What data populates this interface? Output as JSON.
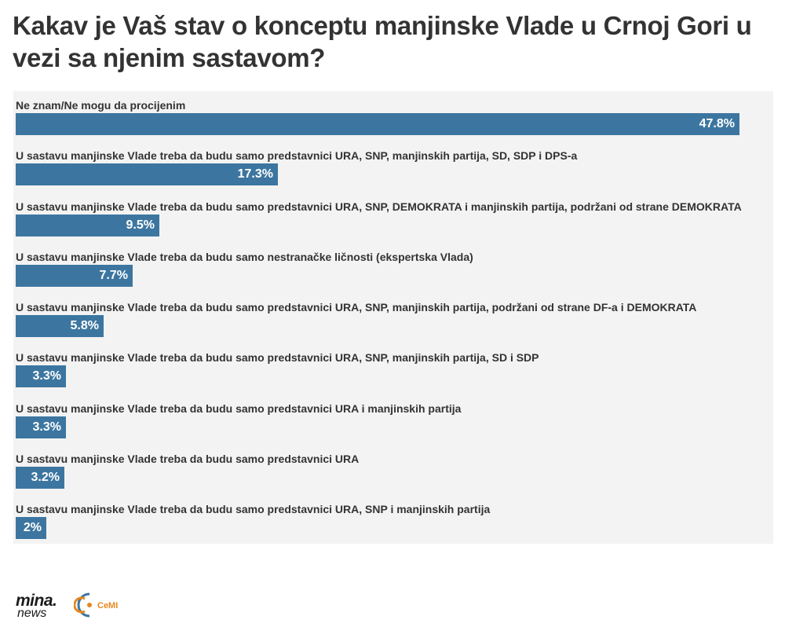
{
  "title": "Kakav je Vaš stav o konceptu manjinske Vlade u Crnoj Gori u vezi sa njenim sastavom?",
  "colors": {
    "bar": "#3c76a0",
    "panel": "#f3f3f3",
    "text": "#333333"
  },
  "chart_data": {
    "type": "bar",
    "orientation": "horizontal",
    "title": "Kakav je Vaš stav o konceptu manjinske Vlade u Crnoj Gori u vezi sa njenim sastavom?",
    "categories": [
      "Ne znam/Ne mogu da procijenim",
      "U sastavu manjinske Vlade treba da budu samo predstavnici URA, SNP, manjinskih partija, SD, SDP i DPS-a",
      "U sastavu manjinske Vlade treba da budu samo predstavnici URA, SNP, DEMOKRATA i manjinskih partija, podržani od strane DEMOKRATA",
      "U sastavu manjinske Vlade treba da budu samo nestranačke ličnosti (ekspertska Vlada)",
      "U sastavu manjinske Vlade treba da budu samo predstavnici URA, SNP, manjinskih partija, podržani od strane DF-a i DEMOKRATA",
      "U sastavu manjinske Vlade treba da budu samo predstavnici URA, SNP, manjinskih partija, SD i SDP",
      "U sastavu manjinske Vlade treba da budu samo predstavnici URA i manjinskih partija",
      "U sastavu manjinske Vlade treba da budu samo predstavnici URA",
      "U sastavu manjinske Vlade treba da budu samo predstavnici URA, SNP i manjinskih partija"
    ],
    "values": [
      47.8,
      17.3,
      9.5,
      7.7,
      5.8,
      3.3,
      3.3,
      3.2,
      2
    ],
    "value_labels": [
      "47.8%",
      "17.3%",
      "9.5%",
      "7.7%",
      "5.8%",
      "3.3%",
      "3.3%",
      "3.2%",
      "2%"
    ],
    "xlim": [
      0,
      50
    ],
    "grid": false,
    "legend": "none"
  },
  "footer": {
    "logo_primary": "mina.",
    "logo_secondary": "news",
    "logo_partner": "CeMI"
  }
}
